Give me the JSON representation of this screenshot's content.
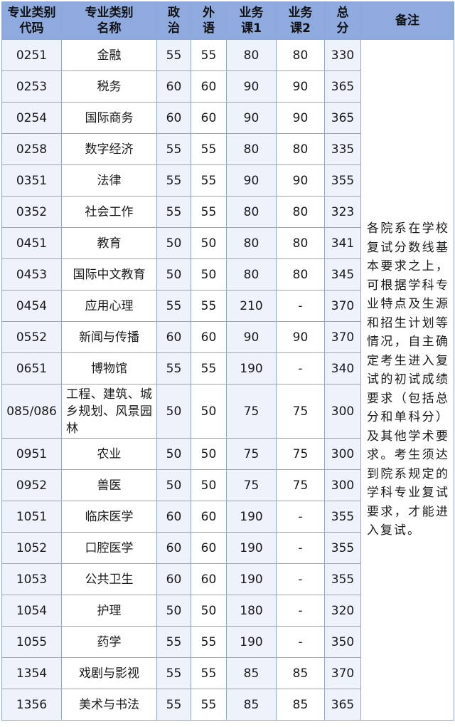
{
  "headers": [
    "专业类别代码",
    "专业类别名称",
    "政治",
    "外语",
    "业务课1",
    "业务课2",
    "总分",
    "备注"
  ],
  "headers_lines": [
    [
      "专业类别",
      "代码"
    ],
    [
      "专业类别",
      "名称"
    ],
    [
      "政",
      "治"
    ],
    [
      "外",
      "语"
    ],
    [
      "业务",
      "课 1"
    ],
    [
      "业务",
      "课 2"
    ],
    [
      "总",
      "分"
    ],
    [
      "备注"
    ]
  ],
  "rows": [
    {
      "code": "0251",
      "name": "金融",
      "politics": "55",
      "language": "55",
      "course1": "80",
      "course2": "80",
      "total": "330"
    },
    {
      "code": "0253",
      "name": "税务",
      "politics": "60",
      "language": "60",
      "course1": "90",
      "course2": "90",
      "total": "365"
    },
    {
      "code": "0254",
      "name": "国际商务",
      "politics": "60",
      "language": "60",
      "course1": "90",
      "course2": "90",
      "total": "365"
    },
    {
      "code": "0258",
      "name": "数字经济",
      "politics": "55",
      "language": "55",
      "course1": "80",
      "course2": "80",
      "total": "335"
    },
    {
      "code": "0351",
      "name": "法律",
      "politics": "55",
      "language": "55",
      "course1": "90",
      "course2": "90",
      "total": "355"
    },
    {
      "code": "0352",
      "name": "社会工作",
      "politics": "55",
      "language": "55",
      "course1": "80",
      "course2": "80",
      "total": "323"
    },
    {
      "code": "0451",
      "name": "教育",
      "politics": "50",
      "language": "50",
      "course1": "80",
      "course2": "80",
      "total": "341"
    },
    {
      "code": "0453",
      "name": "国际中文教育",
      "politics": "50",
      "language": "50",
      "course1": "80",
      "course2": "80",
      "total": "345"
    },
    {
      "code": "0454",
      "name": "应用心理",
      "politics": "55",
      "language": "55",
      "course1": "210",
      "course2": "-",
      "total": "370"
    },
    {
      "code": "0552",
      "name": "新闻与传播",
      "politics": "60",
      "language": "60",
      "course1": "90",
      "course2": "90",
      "total": "370"
    },
    {
      "code": "0651",
      "name": "博物馆",
      "politics": "55",
      "language": "55",
      "course1": "190",
      "course2": "-",
      "total": "340"
    },
    {
      "code": "085/086",
      "name": "工程、建筑、城乡规划、风景园林",
      "politics": "50",
      "language": "50",
      "course1": "75",
      "course2": "75",
      "total": "300"
    },
    {
      "code": "0951",
      "name": "农业",
      "politics": "50",
      "language": "50",
      "course1": "75",
      "course2": "75",
      "total": "300"
    },
    {
      "code": "0952",
      "name": "兽医",
      "politics": "50",
      "language": "50",
      "course1": "75",
      "course2": "75",
      "total": "300"
    },
    {
      "code": "1051",
      "name": "临床医学",
      "politics": "60",
      "language": "60",
      "course1": "190",
      "course2": "-",
      "total": "355"
    },
    {
      "code": "1052",
      "name": "口腔医学",
      "politics": "60",
      "language": "60",
      "course1": "190",
      "course2": "-",
      "total": "355"
    },
    {
      "code": "1053",
      "name": "公共卫生",
      "politics": "60",
      "language": "60",
      "course1": "190",
      "course2": "-",
      "total": "355"
    },
    {
      "code": "1054",
      "name": "护理",
      "politics": "50",
      "language": "50",
      "course1": "180",
      "course2": "-",
      "total": "320"
    },
    {
      "code": "1055",
      "name": "药学",
      "politics": "55",
      "language": "55",
      "course1": "190",
      "course2": "-",
      "total": "350"
    },
    {
      "code": "1354",
      "name": "戏剧与影视",
      "politics": "55",
      "language": "55",
      "course1": "85",
      "course2": "85",
      "total": "370"
    },
    {
      "code": "1356",
      "name": "美术与书法",
      "politics": "55",
      "language": "55",
      "course1": "85",
      "course2": "85",
      "total": "365"
    }
  ],
  "note": "各院系在学校复试分数线基本要求之上，可根据学科专业特点及生源和招生计划等情况，自主确定考生进入复试的初试成绩要求（包括总分和单科分）及其他学术要求。考生须达到院系规定的学科专业复试要求，才能进入复试。",
  "colors": {
    "header_bg": "#8eaadf",
    "border": "#8ea6d8",
    "shaded_col": "#eef2fa"
  }
}
